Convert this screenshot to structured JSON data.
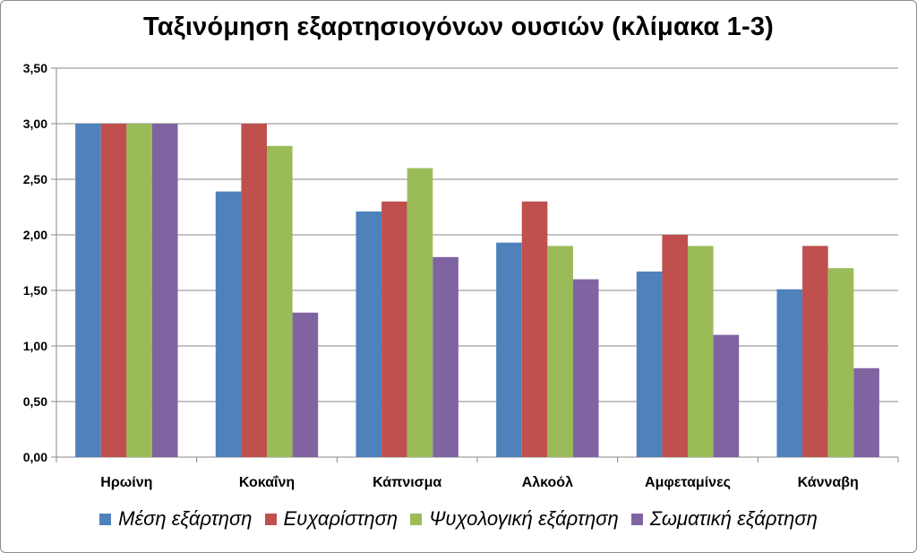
{
  "chart_data": {
    "type": "bar",
    "title": "Ταξινόμηση εξαρτησιογόνων ουσιών (κλίμακα 1-3)",
    "xlabel": "",
    "ylabel": "",
    "categories": [
      "Ηρωίνη",
      "Κοκαΐνη",
      "Κάπνισμα",
      "Αλκοόλ",
      "Αμφεταμίνες",
      "Κάνναβη"
    ],
    "series": [
      {
        "name": "Μέση εξάρτηση",
        "color": "#4f81bd",
        "values": [
          3.0,
          2.39,
          2.21,
          1.93,
          1.67,
          1.51
        ]
      },
      {
        "name": "Ευχαρίστηση",
        "color": "#c0504d",
        "values": [
          3.0,
          3.0,
          2.3,
          2.3,
          2.0,
          1.9
        ]
      },
      {
        "name": "Ψυχολογική εξάρτηση",
        "color": "#9bbb59",
        "values": [
          3.0,
          2.8,
          2.6,
          1.9,
          1.9,
          1.7
        ]
      },
      {
        "name": "Σωματική εξάρτηση",
        "color": "#8064a2",
        "values": [
          3.0,
          1.3,
          1.8,
          1.6,
          1.1,
          0.8
        ]
      }
    ],
    "ylim": [
      0,
      3.5
    ],
    "yticks": [
      "0,00",
      "0,50",
      "1,00",
      "1,50",
      "2,00",
      "2,50",
      "3,00",
      "3,50"
    ],
    "grid": true,
    "legend_position": "bottom"
  }
}
